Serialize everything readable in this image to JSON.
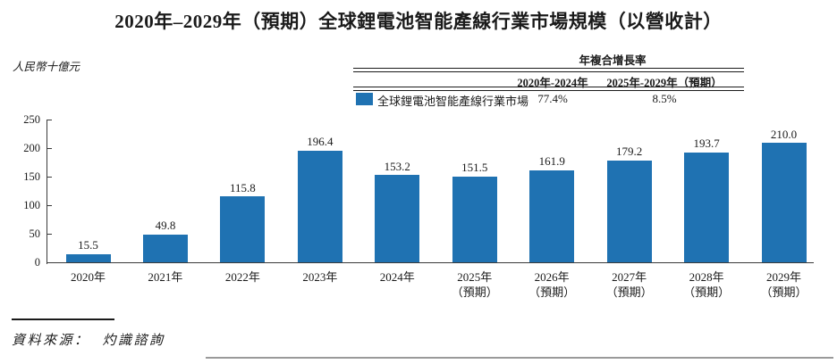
{
  "title": "2020年–2029年（預期）全球鋰電池智能產線行業市場規模（以營收計）",
  "unit_label": "人民幣十億元",
  "cagr_table": {
    "header": "年複合增長率",
    "col1": "2020年-2024年",
    "col2": "2025年-2029年（預期）",
    "legend_label": "全球鋰電池智能產線行業市場",
    "val1": "77.4%",
    "val2": "8.5%"
  },
  "source": {
    "label": "資料來源：",
    "value": "灼識諮詢"
  },
  "chart_data": {
    "type": "bar",
    "title": "2020年–2029年（預期）全球鋰電池智能產線行業市場規模（以營收計）",
    "ylabel": "人民幣十億元",
    "categories": [
      "2020年",
      "2021年",
      "2022年",
      "2023年",
      "2024年",
      "2025年（預期）",
      "2026年（預期）",
      "2027年（預期）",
      "2028年（預期）",
      "2029年（預期）"
    ],
    "values": [
      15.5,
      49.8,
      115.8,
      196.4,
      153.2,
      151.5,
      161.9,
      179.2,
      193.7,
      210.0
    ],
    "value_labels": [
      "15.5",
      "49.8",
      "115.8",
      "196.4",
      "153.2",
      "151.5",
      "161.9",
      "179.2",
      "193.7",
      "210.0"
    ],
    "ylim": [
      0,
      250
    ],
    "yticks": [
      0,
      50,
      100,
      150,
      200,
      250
    ],
    "bar_color": "#1F72B2",
    "grid": false,
    "legend": "全球鋰電池智能產線行業市場",
    "cagr": {
      "2020年-2024年": "77.4%",
      "2025年-2029年（預期）": "8.5%"
    }
  }
}
